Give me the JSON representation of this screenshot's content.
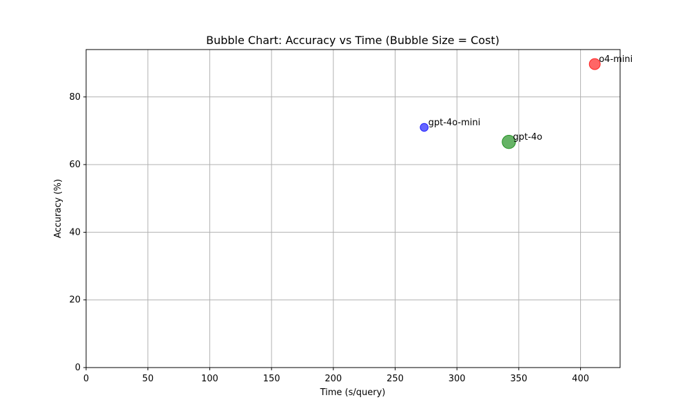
{
  "chart_data": {
    "type": "scatter",
    "title": "Bubble Chart: Accuracy vs Time (Bubble Size = Cost)",
    "xlabel": "Time (s/query)",
    "ylabel": "Accuracy (%)",
    "xlim": [
      0,
      432
    ],
    "ylim": [
      0,
      94
    ],
    "x_ticks": [
      0,
      50,
      100,
      150,
      200,
      250,
      300,
      350,
      400
    ],
    "y_ticks": [
      0,
      20,
      40,
      60,
      80
    ],
    "grid": true,
    "series": [
      {
        "name": "gpt-4o-mini",
        "x": 273.5,
        "y": 71,
        "size": 0.15,
        "color": "#0000ff"
      },
      {
        "name": "gpt-4o",
        "x": 342,
        "y": 66.7,
        "size": 2.5,
        "color": "#008000"
      },
      {
        "name": "o4-mini",
        "x": 411.5,
        "y": 89.7,
        "size": 1.1,
        "color": "#ff0000"
      }
    ]
  }
}
